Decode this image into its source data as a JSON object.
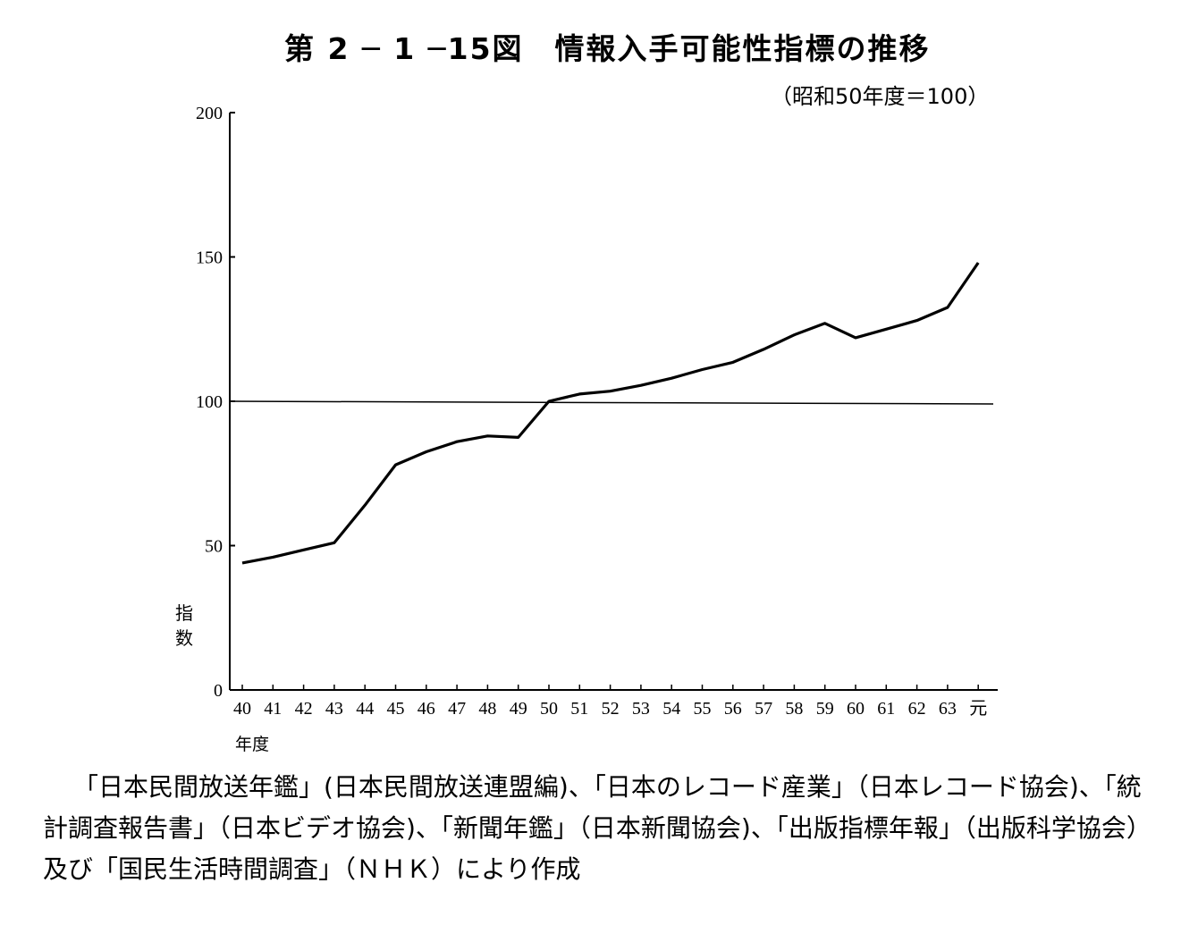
{
  "title": "第 2 ─ 1 ─15図　情報入手可能性指標の推移",
  "unit_note": "（昭和50年度＝100）",
  "source_note": "「日本民間放送年鑑」(日本民間放送連盟編)、「日本のレコード産業」（日本レコード協会)、「統計調査報告書」（日本ビデオ協会)、「新聞年鑑」（日本新聞協会)、「出版指標年報」（出版科学協会）及び「国民生活時間調査」（ＮＨＫ）により作成",
  "chart_data": {
    "type": "line",
    "title": "情報入手可能性指標の推移",
    "xlabel": "年度",
    "ylabel": "指数",
    "categories": [
      "40",
      "41",
      "42",
      "43",
      "44",
      "45",
      "46",
      "47",
      "48",
      "49",
      "50",
      "51",
      "52",
      "53",
      "54",
      "55",
      "56",
      "57",
      "58",
      "59",
      "60",
      "61",
      "62",
      "63",
      "元"
    ],
    "series": [
      {
        "values": [
          44,
          46,
          48.5,
          51,
          64,
          78,
          82.5,
          86,
          88,
          87.5,
          100,
          102.5,
          103.5,
          105.5,
          108,
          111,
          113.5,
          118,
          123,
          127,
          122,
          125,
          128,
          132.5,
          148
        ]
      }
    ],
    "reference_line": 100,
    "ylim": [
      0,
      200
    ],
    "yticks": [
      0,
      50,
      100,
      150,
      200
    ],
    "grid": false,
    "legend": "none"
  }
}
